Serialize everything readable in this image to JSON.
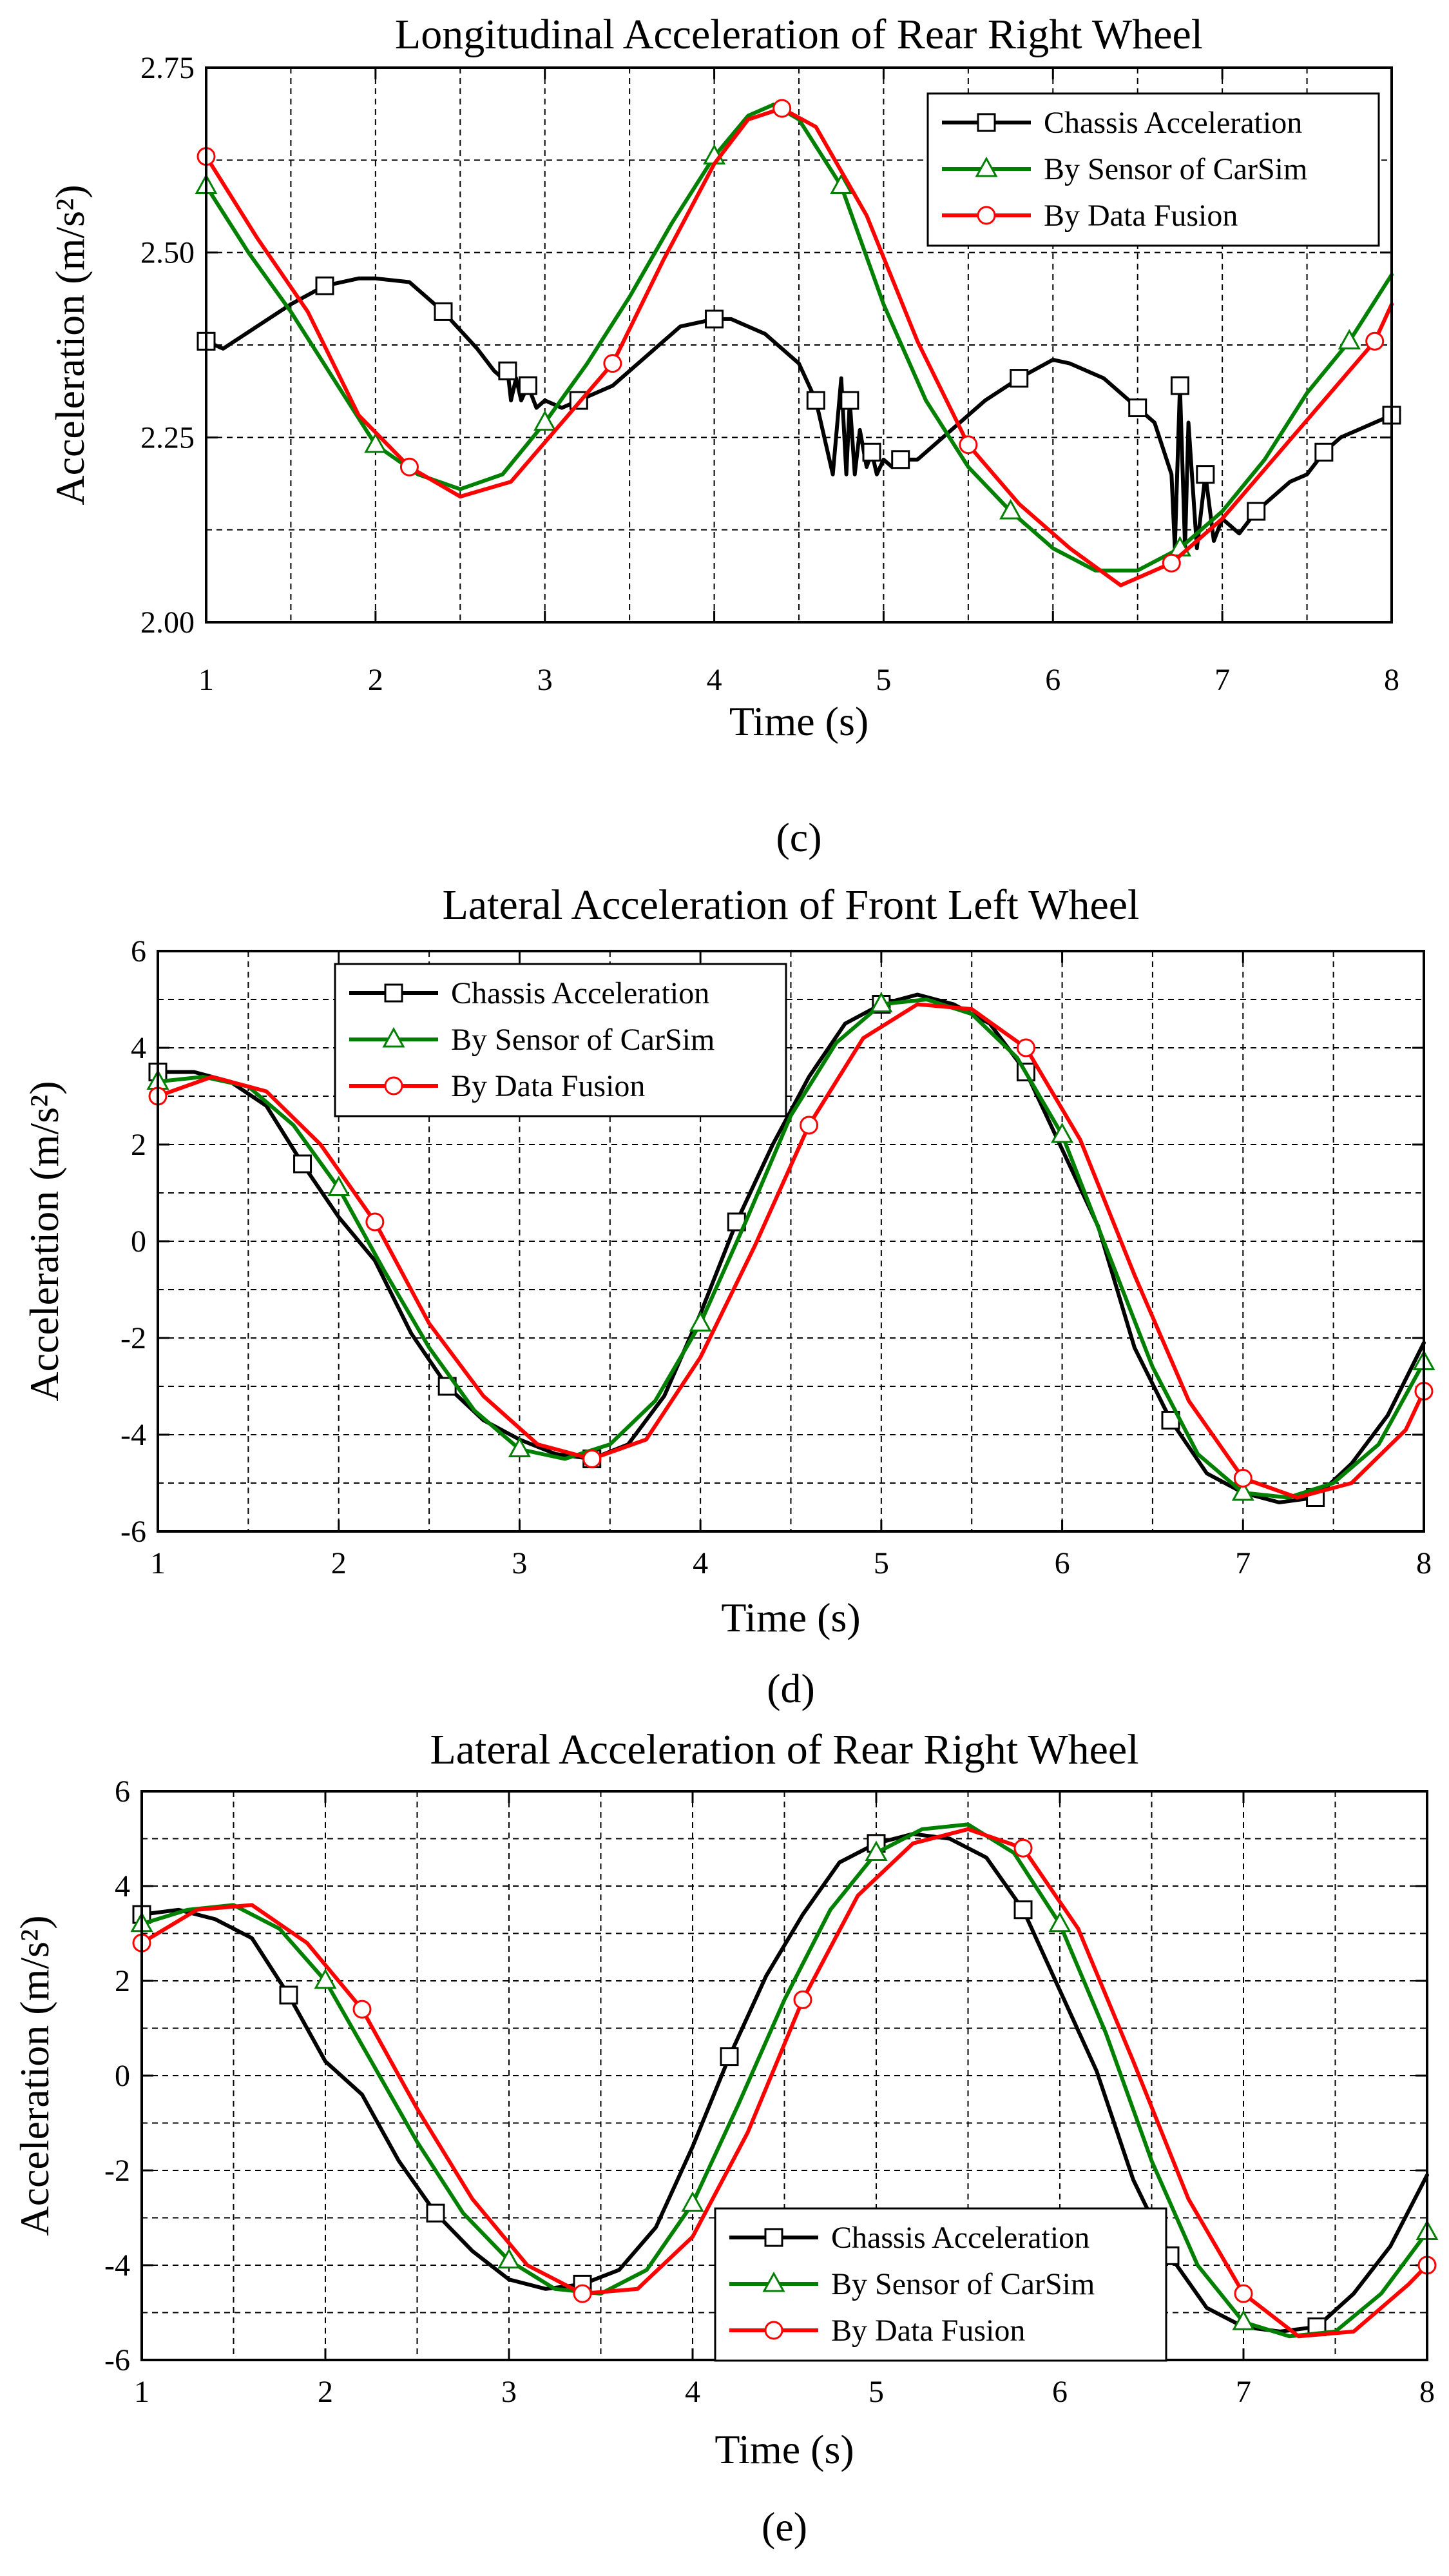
{
  "colors": {
    "chassis": "#000000",
    "sensor": "#008000",
    "fusion": "#ff0000"
  },
  "chart_data": [
    {
      "type": "line",
      "panel": "(c)",
      "title": "Longitudinal Acceleration of Rear Right Wheel",
      "xlabel": "Time (s)",
      "ylabel": "Acceleration (m/s²)",
      "xlim": [
        1,
        8
      ],
      "ylim": [
        2.0,
        2.75
      ],
      "xticks": [
        1,
        2,
        3,
        4,
        5,
        6,
        7,
        8
      ],
      "yticks": [
        2.0,
        2.25,
        2.5,
        2.75
      ],
      "ytick_labels": [
        "2.00",
        "2.25",
        "2.50",
        "2.75"
      ],
      "grid": true,
      "legend_position": "top-right",
      "series": [
        {
          "name": "Chassis Acceleration",
          "marker": "square",
          "color": "#000000",
          "x": [
            1.0,
            1.1,
            1.3,
            1.5,
            1.7,
            1.9,
            2.0,
            2.2,
            2.4,
            2.6,
            2.7,
            2.75,
            2.78,
            2.8,
            2.83,
            2.86,
            2.9,
            2.95,
            3.0,
            3.1,
            3.2,
            3.4,
            3.6,
            3.8,
            4.0,
            4.1,
            4.3,
            4.5,
            4.6,
            4.7,
            4.75,
            4.78,
            4.8,
            4.83,
            4.86,
            4.9,
            4.93,
            4.96,
            5.0,
            5.05,
            5.1,
            5.2,
            5.4,
            5.6,
            5.8,
            6.0,
            6.1,
            6.3,
            6.5,
            6.6,
            6.7,
            6.72,
            6.75,
            6.78,
            6.8,
            6.85,
            6.9,
            6.95,
            7.0,
            7.1,
            7.2,
            7.3,
            7.4,
            7.5,
            7.6,
            7.7,
            7.8,
            7.9,
            8.0
          ],
          "y": [
            2.38,
            2.37,
            2.4,
            2.43,
            2.455,
            2.465,
            2.465,
            2.46,
            2.42,
            2.37,
            2.34,
            2.33,
            2.34,
            2.3,
            2.33,
            2.3,
            2.32,
            2.29,
            2.3,
            2.29,
            2.3,
            2.32,
            2.36,
            2.4,
            2.41,
            2.41,
            2.39,
            2.35,
            2.3,
            2.2,
            2.33,
            2.2,
            2.3,
            2.2,
            2.26,
            2.21,
            2.23,
            2.2,
            2.22,
            2.21,
            2.22,
            2.22,
            2.26,
            2.3,
            2.33,
            2.355,
            2.35,
            2.33,
            2.29,
            2.27,
            2.2,
            2.1,
            2.32,
            2.1,
            2.27,
            2.1,
            2.2,
            2.11,
            2.14,
            2.12,
            2.15,
            2.17,
            2.19,
            2.2,
            2.23,
            2.25,
            2.26,
            2.27,
            2.28
          ]
        },
        {
          "name": "By Sensor of CarSim",
          "marker": "triangle",
          "color": "#008000",
          "x": [
            1.0,
            1.25,
            1.5,
            1.75,
            2.0,
            2.25,
            2.5,
            2.75,
            3.0,
            3.25,
            3.5,
            3.75,
            4.0,
            4.2,
            4.35,
            4.5,
            4.75,
            5.0,
            5.25,
            5.5,
            5.75,
            6.0,
            6.25,
            6.5,
            6.75,
            7.0,
            7.25,
            7.5,
            7.75,
            8.0
          ],
          "y": [
            2.59,
            2.5,
            2.42,
            2.33,
            2.24,
            2.2,
            2.18,
            2.2,
            2.27,
            2.35,
            2.44,
            2.54,
            2.63,
            2.685,
            2.7,
            2.68,
            2.59,
            2.43,
            2.3,
            2.21,
            2.15,
            2.1,
            2.07,
            2.07,
            2.1,
            2.15,
            2.22,
            2.31,
            2.38,
            2.47
          ]
        },
        {
          "name": "By Data Fusion",
          "marker": "circle",
          "color": "#ff0000",
          "x": [
            1.0,
            1.3,
            1.6,
            1.9,
            2.2,
            2.5,
            2.8,
            3.1,
            3.4,
            3.7,
            4.0,
            4.2,
            4.4,
            4.6,
            4.9,
            5.2,
            5.5,
            5.8,
            6.1,
            6.4,
            6.7,
            7.0,
            7.3,
            7.6,
            7.9,
            8.0
          ],
          "y": [
            2.63,
            2.52,
            2.42,
            2.28,
            2.21,
            2.17,
            2.19,
            2.27,
            2.35,
            2.49,
            2.62,
            2.68,
            2.695,
            2.67,
            2.55,
            2.38,
            2.24,
            2.16,
            2.1,
            2.05,
            2.08,
            2.14,
            2.22,
            2.3,
            2.38,
            2.43
          ]
        }
      ]
    },
    {
      "type": "line",
      "panel": "(d)",
      "title": "Lateral Acceleration of Front Left Wheel",
      "xlabel": "Time (s)",
      "ylabel": "Acceleration (m/s²)",
      "xlim": [
        1,
        8
      ],
      "ylim": [
        -6,
        6
      ],
      "xticks": [
        1,
        2,
        3,
        4,
        5,
        6,
        7,
        8
      ],
      "yticks": [
        -6,
        -4,
        -2,
        0,
        2,
        4,
        6
      ],
      "ytick_labels": [
        "-6",
        "-4",
        "-2",
        "0",
        "2",
        "4",
        "6"
      ],
      "grid": true,
      "legend_position": "top-left",
      "series": [
        {
          "name": "Chassis Acceleration",
          "marker": "square",
          "color": "#000000",
          "x": [
            1.0,
            1.2,
            1.4,
            1.6,
            1.8,
            2.0,
            2.2,
            2.4,
            2.6,
            2.8,
            3.0,
            3.2,
            3.4,
            3.6,
            3.8,
            4.0,
            4.2,
            4.4,
            4.6,
            4.8,
            5.0,
            5.2,
            5.4,
            5.6,
            5.8,
            6.0,
            6.2,
            6.4,
            6.6,
            6.8,
            7.0,
            7.2,
            7.4,
            7.6,
            7.8,
            8.0
          ],
          "y": [
            3.5,
            3.5,
            3.3,
            2.8,
            1.6,
            0.5,
            -0.4,
            -1.9,
            -3.0,
            -3.7,
            -4.1,
            -4.4,
            -4.5,
            -4.2,
            -3.2,
            -1.5,
            0.4,
            2.0,
            3.4,
            4.5,
            4.9,
            5.1,
            4.9,
            4.5,
            3.5,
            1.9,
            0.3,
            -2.2,
            -3.7,
            -4.8,
            -5.2,
            -5.4,
            -5.3,
            -4.6,
            -3.6,
            -2.1
          ]
        },
        {
          "name": "By Sensor of CarSim",
          "marker": "triangle",
          "color": "#008000",
          "x": [
            1.0,
            1.25,
            1.5,
            1.75,
            2.0,
            2.25,
            2.5,
            2.75,
            3.0,
            3.25,
            3.5,
            3.75,
            4.0,
            4.25,
            4.5,
            4.75,
            5.0,
            5.25,
            5.5,
            5.75,
            6.0,
            6.25,
            6.5,
            6.75,
            7.0,
            7.25,
            7.5,
            7.75,
            8.0
          ],
          "y": [
            3.3,
            3.4,
            3.2,
            2.4,
            1.1,
            -0.6,
            -2.2,
            -3.5,
            -4.3,
            -4.5,
            -4.2,
            -3.3,
            -1.7,
            0.4,
            2.6,
            4.1,
            4.9,
            5.0,
            4.7,
            3.8,
            2.2,
            -0.2,
            -2.6,
            -4.4,
            -5.2,
            -5.3,
            -5.0,
            -4.2,
            -2.5
          ]
        },
        {
          "name": "By Data Fusion",
          "marker": "circle",
          "color": "#ff0000",
          "x": [
            1.0,
            1.3,
            1.6,
            1.9,
            2.2,
            2.5,
            2.8,
            3.1,
            3.4,
            3.7,
            4.0,
            4.3,
            4.6,
            4.9,
            5.2,
            5.5,
            5.8,
            6.1,
            6.4,
            6.7,
            7.0,
            7.3,
            7.6,
            7.9,
            8.0
          ],
          "y": [
            3.0,
            3.4,
            3.1,
            2.0,
            0.4,
            -1.7,
            -3.2,
            -4.2,
            -4.5,
            -4.1,
            -2.4,
            -0.1,
            2.4,
            4.2,
            4.9,
            4.8,
            4.0,
            2.1,
            -0.7,
            -3.3,
            -4.9,
            -5.3,
            -5.0,
            -3.9,
            -3.1
          ]
        }
      ]
    },
    {
      "type": "line",
      "panel": "(e)",
      "title": "Lateral Acceleration of Rear Right Wheel",
      "xlabel": "Time (s)",
      "ylabel": "Acceleration (m/s²)",
      "xlim": [
        1,
        8
      ],
      "ylim": [
        -6,
        6
      ],
      "xticks": [
        1,
        2,
        3,
        4,
        5,
        6,
        7,
        8
      ],
      "yticks": [
        -6,
        -4,
        -2,
        0,
        2,
        4,
        6
      ],
      "ytick_labels": [
        "-6",
        "-4",
        "-2",
        "0",
        "2",
        "4",
        "6"
      ],
      "grid": true,
      "legend_position": "bottom-center",
      "series": [
        {
          "name": "Chassis Acceleration",
          "marker": "square",
          "color": "#000000",
          "x": [
            1.0,
            1.2,
            1.4,
            1.6,
            1.8,
            2.0,
            2.2,
            2.4,
            2.6,
            2.8,
            3.0,
            3.2,
            3.4,
            3.6,
            3.8,
            4.0,
            4.2,
            4.4,
            4.6,
            4.8,
            5.0,
            5.2,
            5.4,
            5.6,
            5.8,
            6.0,
            6.2,
            6.4,
            6.6,
            6.8,
            7.0,
            7.2,
            7.4,
            7.6,
            7.8,
            8.0
          ],
          "y": [
            3.4,
            3.5,
            3.3,
            2.9,
            1.7,
            0.3,
            -0.4,
            -1.8,
            -2.9,
            -3.7,
            -4.3,
            -4.5,
            -4.4,
            -4.1,
            -3.2,
            -1.5,
            0.4,
            2.1,
            3.4,
            4.5,
            4.9,
            5.1,
            5.0,
            4.6,
            3.5,
            1.8,
            0.1,
            -2.2,
            -3.8,
            -4.9,
            -5.3,
            -5.4,
            -5.3,
            -4.6,
            -3.6,
            -2.1
          ]
        },
        {
          "name": "By Sensor of CarSim",
          "marker": "triangle",
          "color": "#008000",
          "x": [
            1.0,
            1.25,
            1.5,
            1.75,
            2.0,
            2.25,
            2.5,
            2.75,
            3.0,
            3.25,
            3.5,
            3.75,
            4.0,
            4.25,
            4.5,
            4.75,
            5.0,
            5.25,
            5.5,
            5.75,
            6.0,
            6.25,
            6.5,
            6.75,
            7.0,
            7.25,
            7.5,
            7.75,
            8.0
          ],
          "y": [
            3.2,
            3.5,
            3.6,
            3.1,
            2.0,
            0.3,
            -1.4,
            -2.9,
            -3.9,
            -4.5,
            -4.6,
            -4.1,
            -2.7,
            -0.6,
            1.6,
            3.5,
            4.7,
            5.2,
            5.3,
            4.7,
            3.2,
            0.9,
            -1.8,
            -4.0,
            -5.2,
            -5.5,
            -5.4,
            -4.6,
            -3.3
          ]
        },
        {
          "name": "By Data Fusion",
          "marker": "circle",
          "color": "#ff0000",
          "x": [
            1.0,
            1.3,
            1.6,
            1.9,
            2.2,
            2.5,
            2.8,
            3.1,
            3.4,
            3.7,
            4.0,
            4.3,
            4.6,
            4.9,
            5.2,
            5.5,
            5.8,
            6.1,
            6.4,
            6.7,
            7.0,
            7.3,
            7.6,
            7.9,
            8.0
          ],
          "y": [
            2.8,
            3.5,
            3.6,
            2.8,
            1.4,
            -0.7,
            -2.6,
            -4.0,
            -4.6,
            -4.5,
            -3.4,
            -1.2,
            1.6,
            3.8,
            4.9,
            5.2,
            4.8,
            3.1,
            0.3,
            -2.6,
            -4.6,
            -5.5,
            -5.4,
            -4.4,
            -4.0
          ]
        }
      ]
    }
  ]
}
